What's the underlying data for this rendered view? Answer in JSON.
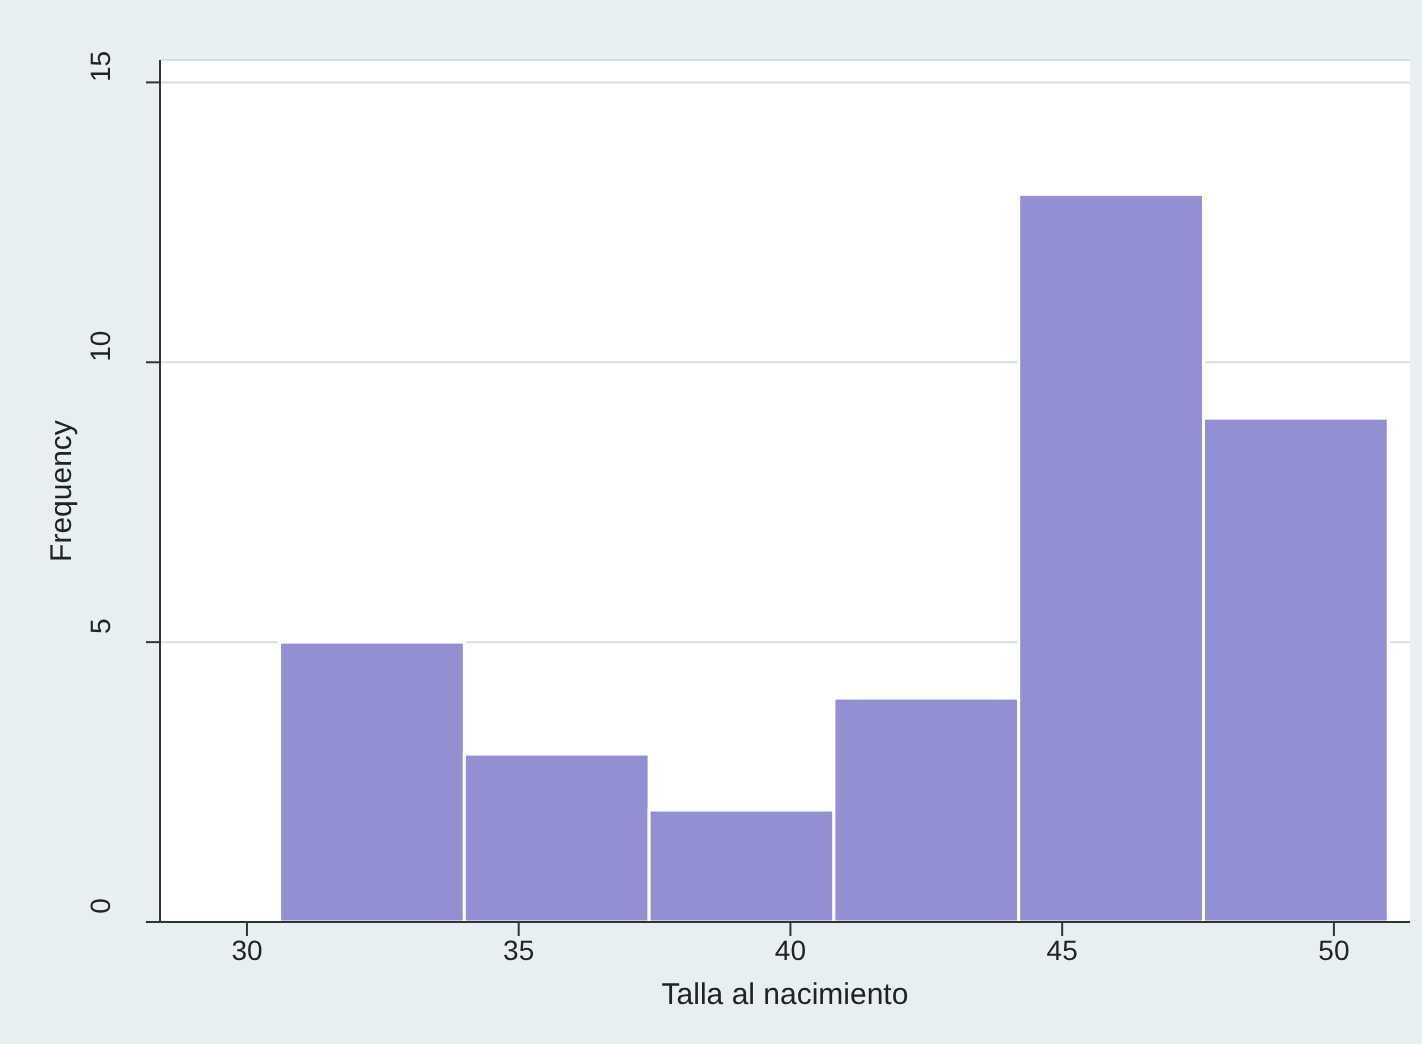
{
  "chart_data": {
    "type": "histogram",
    "xlabel": "Talla al nacimiento",
    "ylabel": "Frequency",
    "bins": [
      30.6,
      34,
      37.4,
      40.8,
      44.2,
      47.6,
      51
    ],
    "values": [
      5,
      3,
      2,
      4,
      13,
      9
    ],
    "color": "#938fd3",
    "xlim": [
      28.4,
      51.4
    ],
    "xticks": [
      30,
      35,
      40,
      45,
      50
    ],
    "ylim": [
      0,
      15.4
    ],
    "yticks": [
      0,
      5,
      10,
      15
    ],
    "grid": "y"
  }
}
